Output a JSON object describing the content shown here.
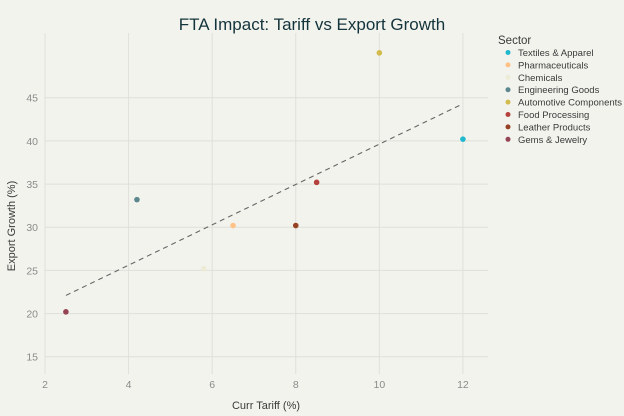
{
  "chart_data": {
    "type": "scatter",
    "title": "FTA Impact: Tariff vs Export Growth",
    "xlabel": "Curr Tariff (%)",
    "ylabel": "Export Growth (%)",
    "xlim": [
      2,
      12.6
    ],
    "ylim": [
      13,
      52.5
    ],
    "x_ticks": [
      2,
      4,
      6,
      8,
      10,
      12
    ],
    "y_ticks": [
      15,
      20,
      25,
      30,
      35,
      40,
      45
    ],
    "grid": true,
    "legend": {
      "title": "Sector",
      "placement": "right"
    },
    "series": [
      {
        "name": "Textiles & Apparel",
        "color": "#1FB8CD",
        "x": 12,
        "y": 40.2
      },
      {
        "name": "Pharmaceuticals",
        "color": "#FFC185",
        "x": 6.5,
        "y": 30.2
      },
      {
        "name": "Chemicals",
        "color": "#ECEBD5",
        "x": 5.8,
        "y": 25.2
      },
      {
        "name": "Engineering Goods",
        "color": "#5D878F",
        "x": 4.2,
        "y": 33.2
      },
      {
        "name": "Automotive Components",
        "color": "#D2BA4C",
        "x": 10,
        "y": 50.2
      },
      {
        "name": "Food Processing",
        "color": "#B4413C",
        "x": 8.5,
        "y": 35.2
      },
      {
        "name": "Leather Products",
        "color": "#964325",
        "x": 8,
        "y": 30.2
      },
      {
        "name": "Gems & Jewelry",
        "color": "#944454",
        "x": 2.5,
        "y": 20.2
      }
    ],
    "trendline": {
      "style": "dashed",
      "color": "#666666",
      "x": [
        2.5,
        12
      ],
      "y": [
        22.1,
        44.3
      ]
    }
  }
}
